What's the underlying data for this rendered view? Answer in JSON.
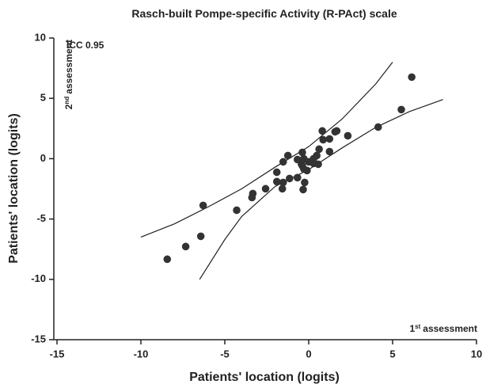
{
  "chart_data": {
    "type": "scatter",
    "title": "Rasch-built Pompe-specific Activity (R-PAct) scale",
    "x_label": "Patients' location (logits)",
    "y_label": "Patients' location (logits)",
    "annotations": {
      "icc": "ICC 0.95",
      "y_assessment": {
        "number": "2",
        "suffix": "nd",
        "text": "assessment"
      },
      "x_assessment": {
        "number": "1",
        "suffix": "st",
        "text": "assessment"
      }
    },
    "xlim": [
      -15,
      10
    ],
    "ylim": [
      -15,
      10
    ],
    "xticks": [
      -15,
      -10,
      -5,
      0,
      5,
      10
    ],
    "yticks": [
      -15,
      -10,
      -5,
      0,
      5,
      10
    ],
    "color": "#333333",
    "line_color": "#222222",
    "x": [
      -8.43,
      -7.33,
      -6.43,
      -6.29,
      -4.29,
      -3.33,
      -3.38,
      -2.57,
      -1.9,
      -1.9,
      -1.52,
      -1.57,
      -1.52,
      -1.24,
      -1.14,
      -0.67,
      -0.67,
      -0.43,
      -0.38,
      -0.38,
      -0.29,
      -0.29,
      -0.33,
      -0.24,
      -0.1,
      0,
      0.29,
      0.29,
      0.48,
      0.57,
      0.62,
      0.81,
      0.86,
      1.24,
      1.24,
      1.57,
      1.67,
      2.33,
      4.14,
      5.52,
      6.14
    ],
    "values": [
      -8.33,
      -7.28,
      -6.43,
      -3.87,
      -4.27,
      -2.89,
      -3.22,
      -2.49,
      -1.9,
      -1.12,
      -1.97,
      -2.49,
      -0.26,
      0.26,
      -1.64,
      -1.57,
      -0.07,
      -0.46,
      0.52,
      -0.59,
      0,
      -0.85,
      -2.56,
      -1.97,
      -0.98,
      -0.26,
      0,
      -0.39,
      0.26,
      -0.46,
      0.79,
      2.3,
      1.57,
      1.64,
      0.59,
      2.23,
      2.3,
      1.9,
      2.62,
      4.07,
      6.76
    ],
    "bands": [
      {
        "x": [
          -10,
          -8,
          -6,
          -4,
          -2,
          0,
          2,
          4,
          5
        ],
        "values": [
          -6.5,
          -5.4,
          -4.0,
          -2.5,
          -0.7,
          1.0,
          3.3,
          6.2,
          8
        ]
      },
      {
        "x": [
          -6.5,
          -5,
          -4,
          -2,
          0,
          2,
          4,
          6,
          8
        ],
        "values": [
          -10,
          -6.7,
          -4.8,
          -2.3,
          -0.9,
          0.9,
          2.6,
          3.9,
          4.9
        ]
      }
    ]
  }
}
